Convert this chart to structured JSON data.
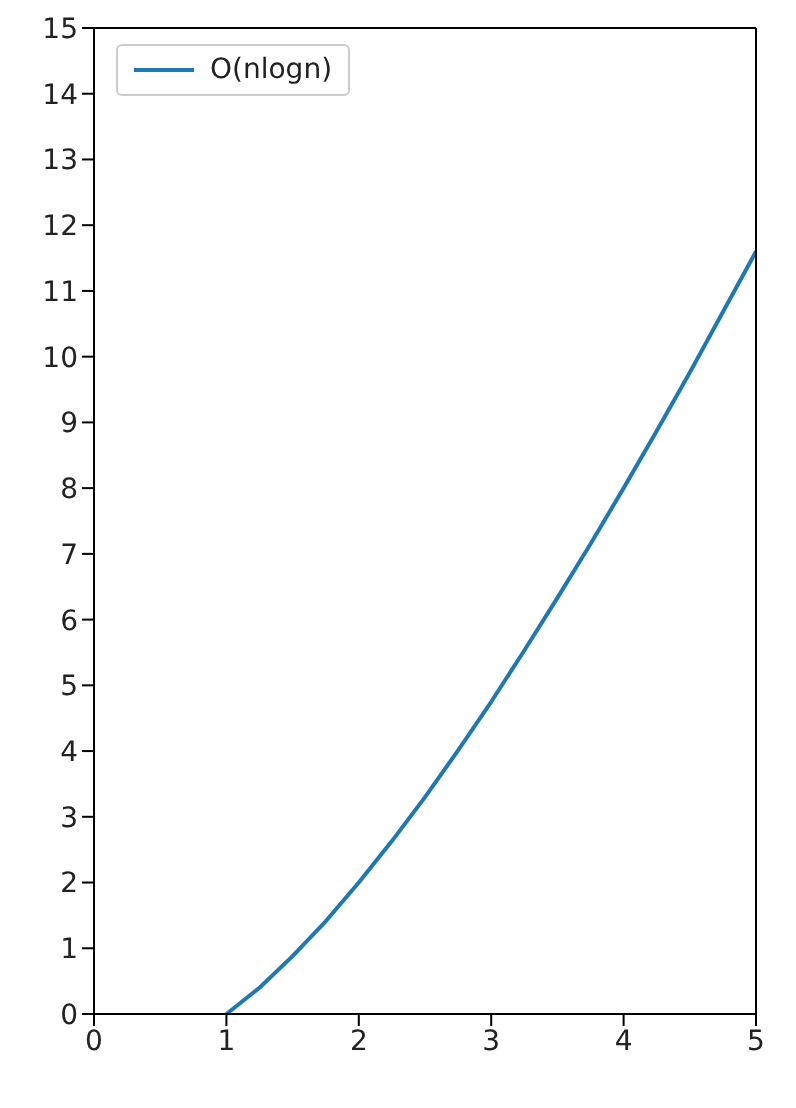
{
  "chart_data": {
    "type": "line",
    "x": [
      1,
      1.25,
      1.5,
      1.75,
      2,
      2.25,
      2.5,
      2.75,
      3,
      3.25,
      3.5,
      3.75,
      4,
      4.25,
      4.5,
      4.75,
      5
    ],
    "series": [
      {
        "name": "O(nlogn)",
        "color": "#1f77b4",
        "values": [
          0,
          0.4,
          0.88,
          1.41,
          2,
          2.63,
          3.3,
          4.01,
          4.75,
          5.53,
          6.33,
          7.15,
          8,
          8.87,
          9.76,
          10.68,
          11.6
        ]
      }
    ],
    "xlim": [
      0,
      5
    ],
    "xticks": [
      0,
      1,
      2,
      3,
      4,
      5
    ],
    "ylim": [
      0,
      15
    ],
    "yticks": [
      0,
      1,
      2,
      3,
      4,
      5,
      6,
      7,
      8,
      9,
      10,
      11,
      12,
      13,
      14,
      15
    ],
    "grid": false,
    "legend": "top left",
    "marker": "none",
    "line_style": "solid"
  }
}
